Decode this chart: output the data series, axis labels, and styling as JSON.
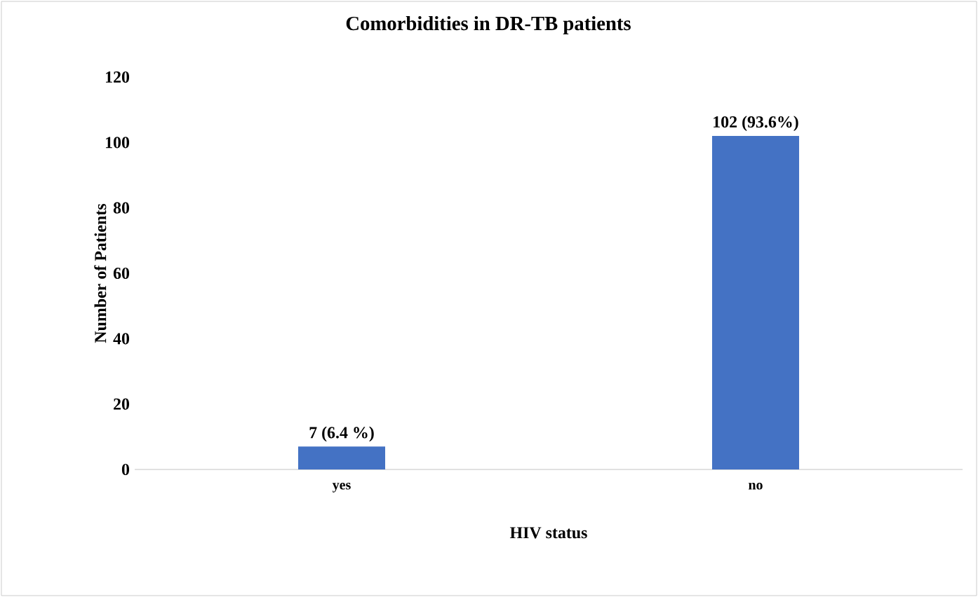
{
  "chart_data": {
    "type": "bar",
    "title": "Comorbidities in DR-TB patients",
    "categories": [
      "yes",
      "no"
    ],
    "values": [
      7,
      102
    ],
    "value_labels": [
      "7 (6.4 %)",
      "102 (93.6%)"
    ],
    "color": "#4472c4",
    "ylim": [
      0,
      120
    ],
    "yticks": [
      0,
      20,
      40,
      60,
      80,
      100,
      120
    ],
    "xlabel": "HIV status",
    "ylabel": "Number of Patients",
    "legend": false
  }
}
